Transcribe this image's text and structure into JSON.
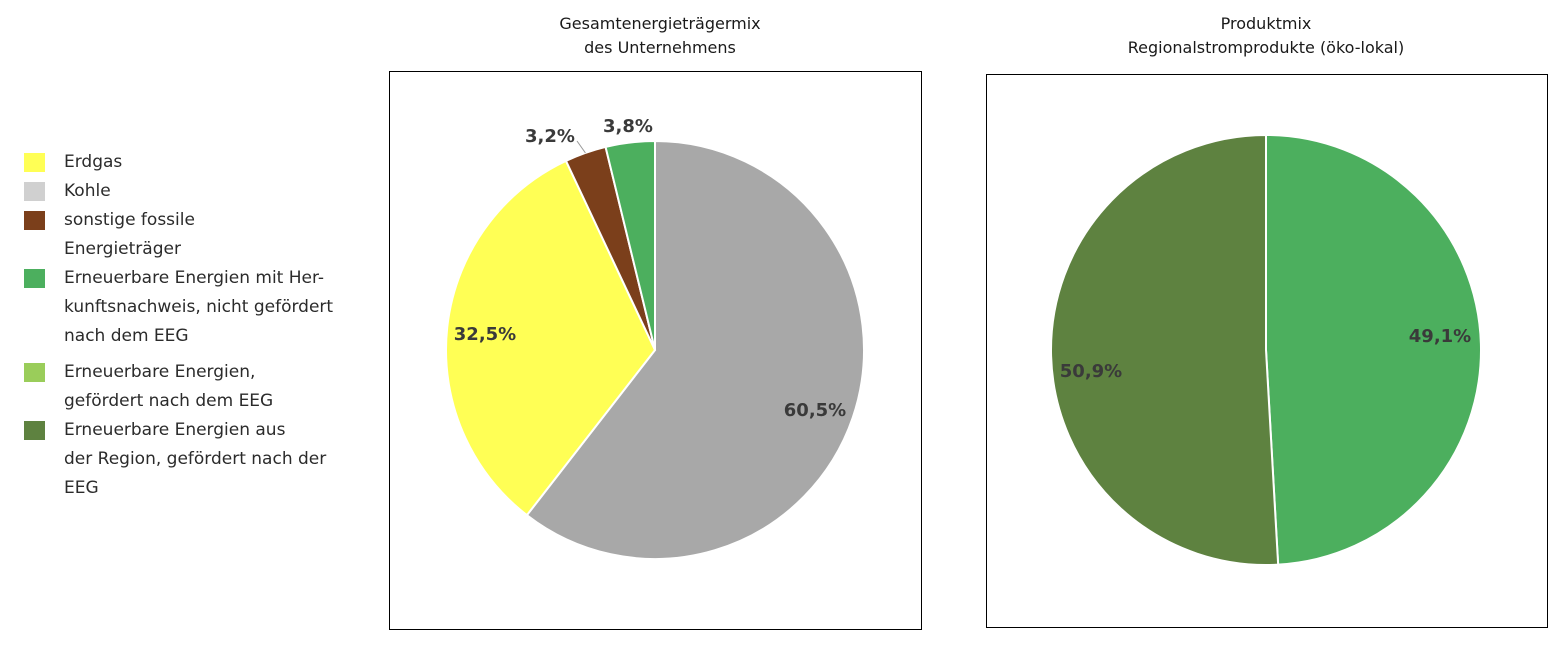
{
  "legend": [
    {
      "label_lines": [
        "Erdgas"
      ],
      "color": "#FFFF55"
    },
    {
      "label_lines": [
        "Kohle"
      ],
      "color": "#D0D0D0"
    },
    {
      "label_lines": [
        "sonstige fossile",
        "Energieträger"
      ],
      "color": "#7B3F1B"
    },
    {
      "label_lines": [
        "Erneuerbare Energien mit Her-",
        "kunftsnachweis, nicht gefördert",
        "nach dem EEG"
      ],
      "color": "#4CAF5E"
    },
    {
      "label_lines": [
        "Erneuerbare Energien,",
        "gefördert nach dem EEG"
      ],
      "color": "#9ACD5A"
    },
    {
      "label_lines": [
        "Erneuerbare Energien aus",
        "der Region, gefördert nach der",
        "EEG"
      ],
      "color": "#5E8240"
    }
  ],
  "chart_data": [
    {
      "type": "pie",
      "title_lines": [
        "Gesamtenergieträgermix",
        "des Unternehmens"
      ],
      "slices": [
        {
          "label": "60,5%",
          "value": 60.5,
          "color": "#A8A8A8"
        },
        {
          "label": "32,5%",
          "value": 32.5,
          "color": "#FFFF55"
        },
        {
          "label": "3,2%",
          "value": 3.2,
          "color": "#7B3F1B"
        },
        {
          "label": "3,8%",
          "value": 3.8,
          "color": "#4CAF5E"
        }
      ]
    },
    {
      "type": "pie",
      "title_lines": [
        "Produktmix",
        "Regionalstromprodukte (öko-lokal)"
      ],
      "slices": [
        {
          "label": "49,1%",
          "value": 49.1,
          "color": "#4CAF5E"
        },
        {
          "label": "50,9%",
          "value": 50.9,
          "color": "#5E8240"
        }
      ]
    }
  ]
}
